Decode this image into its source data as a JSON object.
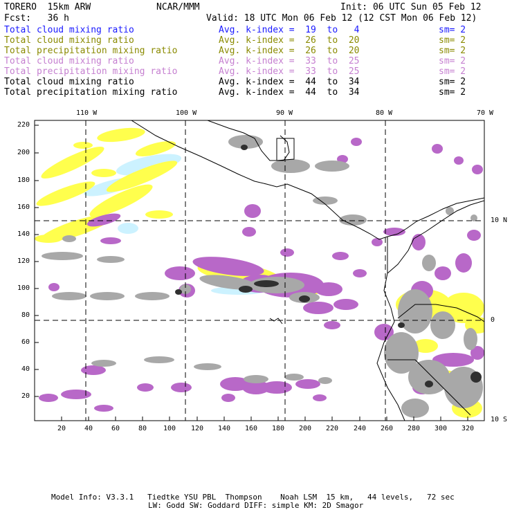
{
  "header": {
    "model": "TORERO  15km ARW",
    "org": "NCAR/MMM",
    "init": "Init: 06 UTC Sun 05 Feb 12",
    "fcst": "Fcst:   36 h",
    "valid": "Valid: 18 UTC Mon 06 Feb 12 (12 CST Mon 06 Feb 12)"
  },
  "legend": [
    {
      "name": "Total cloud mixing ratio",
      "kindex": "Avg. k-index =  19  to   4",
      "sm": "sm= 2",
      "color": "#1a1aff"
    },
    {
      "name": "Total cloud mixing ratio",
      "kindex": "Avg. k-index =  26  to  20",
      "sm": "sm= 2",
      "color": "#8a8a00"
    },
    {
      "name": "Total precipitation mixing ratio",
      "kindex": "Avg. k-index =  26  to  20",
      "sm": "sm= 2",
      "color": "#8a8a00"
    },
    {
      "name": "Total cloud mixing ratio",
      "kindex": "Avg. k-index =  33  to  25",
      "sm": "sm= 2",
      "color": "#c57fd0"
    },
    {
      "name": "Total precipitation mixing ratio",
      "kindex": "Avg. k-index =  33  to  25",
      "sm": "sm= 2",
      "color": "#c57fd0"
    },
    {
      "name": "Total cloud mixing ratio",
      "kindex": "Avg. k-index =  44  to  34",
      "sm": "sm= 2",
      "color": "#000000"
    },
    {
      "name": "Total precipitation mixing ratio",
      "kindex": "Avg. k-index =  44  to  34",
      "sm": "sm= 2",
      "color": "#000000"
    }
  ],
  "map": {
    "lon_labels": [
      "110 W",
      "100 W",
      "90 W",
      "80 W",
      "70 W"
    ],
    "lat_labels": [
      "10 N",
      "0",
      "10 S"
    ],
    "y_ticks": [
      "220",
      "200",
      "180",
      "160",
      "140",
      "120",
      "100",
      "80",
      "60",
      "40",
      "20"
    ],
    "x_ticks": [
      "20",
      "40",
      "60",
      "80",
      "100",
      "120",
      "140",
      "160",
      "180",
      "200",
      "220",
      "240",
      "260",
      "280",
      "300",
      "320"
    ]
  },
  "footer": {
    "line1": "Model Info: V3.3.1   Tiedtke YSU PBL  Thompson    Noah LSM  15 km,   44 levels,   72 sec",
    "line2": "LW: Godd SW: Goddard DIFF: simple KM: 2D Smagor"
  },
  "colors": {
    "yellow": "#ffff4d",
    "lightblue": "#ccf2ff",
    "purple": "#b868c8",
    "gray": "#a8a8a8",
    "dark": "#303030"
  }
}
